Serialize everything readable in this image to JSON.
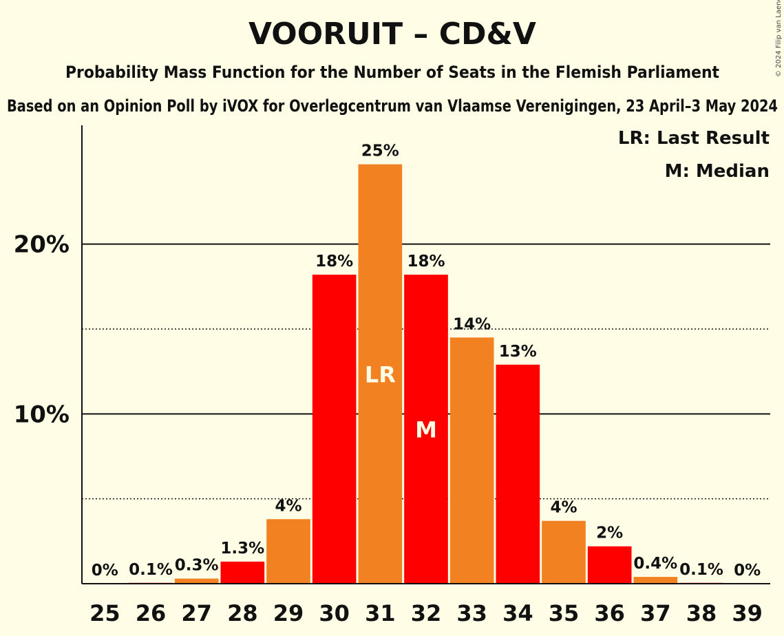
{
  "chart_data": {
    "type": "bar",
    "title": "VOORUIT – CD&V",
    "subtitle": "Probability Mass Function for the Number of Seats in the Flemish Parliament",
    "source_line": "Based on an Opinion Poll by iVOX for Overlegcentrum van Vlaamse Verenigingen, 23 April–3 May 2024",
    "copyright": "© 2024 Filip van Laenen",
    "categories": [
      "25",
      "26",
      "27",
      "28",
      "29",
      "30",
      "31",
      "32",
      "33",
      "34",
      "35",
      "36",
      "37",
      "38",
      "39"
    ],
    "values": [
      0,
      0.05,
      0.3,
      1.3,
      3.8,
      18.2,
      24.7,
      18.2,
      14.5,
      12.9,
      3.7,
      2.2,
      0.4,
      0.05,
      0
    ],
    "labels": [
      "0%",
      "0.1%",
      "0.3%",
      "1.3%",
      "4%",
      "18%",
      "25%",
      "18%",
      "14%",
      "13%",
      "4%",
      "2%",
      "0.4%",
      "0.1%",
      "0%"
    ],
    "bar_colors": [
      "#f28221",
      "#ff0000",
      "#f28221",
      "#ff0000",
      "#f28221",
      "#ff0000",
      "#f28221",
      "#ff0000",
      "#f28221",
      "#ff0000",
      "#f28221",
      "#ff0000",
      "#f28221",
      "#ff0000",
      "#f28221"
    ],
    "ylim": [
      0,
      27
    ],
    "yticks": [
      {
        "value": 10,
        "label": "10%"
      },
      {
        "value": 20,
        "label": "20%"
      }
    ],
    "minor_gridlines": [
      5,
      15
    ],
    "last_result_seat": "31",
    "median_seat": "32",
    "last_result_marker": "LR",
    "median_marker": "M",
    "legend": [
      "LR: Last Result",
      "M: Median"
    ],
    "legend_position": "top-right",
    "colors": {
      "background": "#fffde6",
      "orange": "#f28221",
      "red": "#ff0000"
    }
  }
}
